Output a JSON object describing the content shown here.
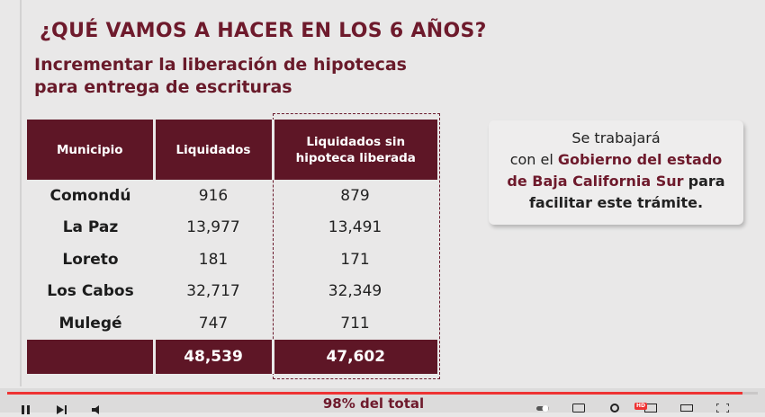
{
  "slide": {
    "question": "¿QUÉ VAMOS A HACER EN LOS 6 AÑOS?",
    "subtitle_line1": "Incrementar la liberación de hipotecas",
    "subtitle_line2": "para entrega de escrituras"
  },
  "table": {
    "headers": [
      "Municipio",
      "Liquidados",
      "Liquidados sin hipoteca liberada"
    ],
    "rows": [
      {
        "municipio": "Comondú",
        "liquidados": "916",
        "liberada": "879"
      },
      {
        "municipio": "La Paz",
        "liquidados": "13,977",
        "liberada": "13,491"
      },
      {
        "municipio": "Loreto",
        "liquidados": "181",
        "liberada": "171"
      },
      {
        "municipio": "Los Cabos",
        "liquidados": "32,717",
        "liberada": "32,349"
      },
      {
        "municipio": "Mulegé",
        "liquidados": "747",
        "liberada": "711"
      }
    ],
    "total": {
      "label": "",
      "liquidados": "48,539",
      "liberada": "47,602"
    }
  },
  "footnote": "98% del total",
  "callout": {
    "line1": "Se trabajará",
    "line2_prefix": "con el",
    "line2_accent": "Gobierno del estado",
    "line3_accent": "de Baja California Sur",
    "line3_suffix": "para",
    "line4": "facilitar este trámite."
  },
  "colors": {
    "brand": "#5e1626",
    "accent": "#6e1a2c",
    "background": "#e9e8e8"
  },
  "player": {
    "progress_fraction": 0.98,
    "badge": "HD",
    "left_icons": [
      "play-icon",
      "next-icon",
      "volume-icon"
    ],
    "right_icons": [
      "autoplay-toggle-icon",
      "subtitles-icon",
      "settings-icon",
      "miniplayer-icon",
      "theater-icon",
      "fullscreen-icon"
    ]
  }
}
